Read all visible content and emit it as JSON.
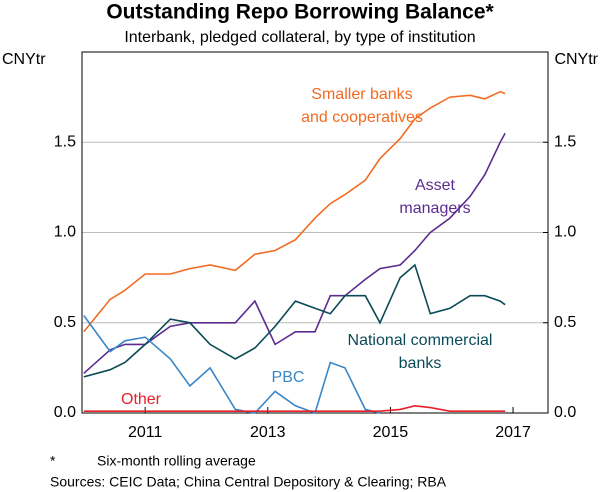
{
  "chart_data": {
    "type": "line",
    "title": "Outstanding Repo Borrowing Balance*",
    "subtitle": "Interbank, pledged collateral, by type of institution",
    "y_unit": "CNYtr",
    "y2_unit": "CNYtr",
    "x": [
      2010.0,
      2010.43,
      2010.67,
      2011.0,
      2011.41,
      2011.73,
      2012.06,
      2012.47,
      2012.79,
      2013.12,
      2013.45,
      2013.77,
      2014.02,
      2014.26,
      2014.59,
      2014.83,
      2015.16,
      2015.4,
      2015.65,
      2015.97,
      2016.3,
      2016.54,
      2016.79,
      2016.87
    ],
    "series": [
      {
        "name": "Smaller banks\nand cooperatives",
        "color": "#f26b21",
        "values": [
          0.45,
          0.63,
          0.68,
          0.77,
          0.77,
          0.8,
          0.82,
          0.79,
          0.88,
          0.9,
          0.96,
          1.08,
          1.16,
          1.21,
          1.29,
          1.41,
          1.52,
          1.63,
          1.69,
          1.75,
          1.76,
          1.74,
          1.78,
          1.77
        ]
      },
      {
        "name": "Asset\nmanagers",
        "color": "#5b2c91",
        "values": [
          0.22,
          0.35,
          0.38,
          0.38,
          0.48,
          0.5,
          0.5,
          0.5,
          0.62,
          0.38,
          0.45,
          0.45,
          0.65,
          0.65,
          0.74,
          0.8,
          0.82,
          0.9,
          1.0,
          1.08,
          1.2,
          1.32,
          1.5,
          1.55
        ]
      },
      {
        "name": "National commercial\nbanks",
        "color": "#0b4a57",
        "values": [
          0.2,
          0.24,
          0.28,
          0.38,
          0.52,
          0.5,
          0.38,
          0.3,
          0.36,
          0.48,
          0.62,
          0.58,
          0.55,
          0.65,
          0.65,
          0.5,
          0.75,
          0.82,
          0.55,
          0.58,
          0.65,
          0.65,
          0.62,
          0.6
        ]
      },
      {
        "name": "PBC",
        "color": "#3a87c8",
        "values": [
          0.54,
          0.34,
          0.4,
          0.42,
          0.3,
          0.15,
          0.25,
          0.02,
          0,
          0.12,
          0.04,
          0,
          0.28,
          0.25,
          0.02,
          0,
          null,
          null,
          null,
          null,
          null,
          null,
          null,
          null
        ]
      },
      {
        "name": "Other",
        "color": "#e8202a",
        "values": [
          0.01,
          0.01,
          0.01,
          0.01,
          0.01,
          0.01,
          0.01,
          0.01,
          0.01,
          0.01,
          0.01,
          0.01,
          0.01,
          0.01,
          0.01,
          0.01,
          0.02,
          0.04,
          0.03,
          0.01,
          0.01,
          0.01,
          0.01,
          0.01
        ]
      }
    ],
    "xlim": [
      2009.97,
      2017.57
    ],
    "xticks": [
      2011,
      2013,
      2015,
      2017
    ],
    "ylim": [
      0,
      2
    ],
    "yticks": [
      {
        "value": 0,
        "label": "0.0"
      },
      0.5,
      {
        "value": 1,
        "label": "1.0"
      },
      1.5
    ],
    "y2lim": [
      0,
      2
    ],
    "y2ticks": [
      {
        "value": 0,
        "label": "0.0"
      },
      0.5,
      {
        "value": 1,
        "label": "1.0"
      },
      1.5
    ],
    "grid": true,
    "notes": {
      "marker": "*",
      "footnote": "Six-month rolling average",
      "sources": "Sources: CEIC Data; China Central Depository & Clearing; RBA"
    }
  }
}
